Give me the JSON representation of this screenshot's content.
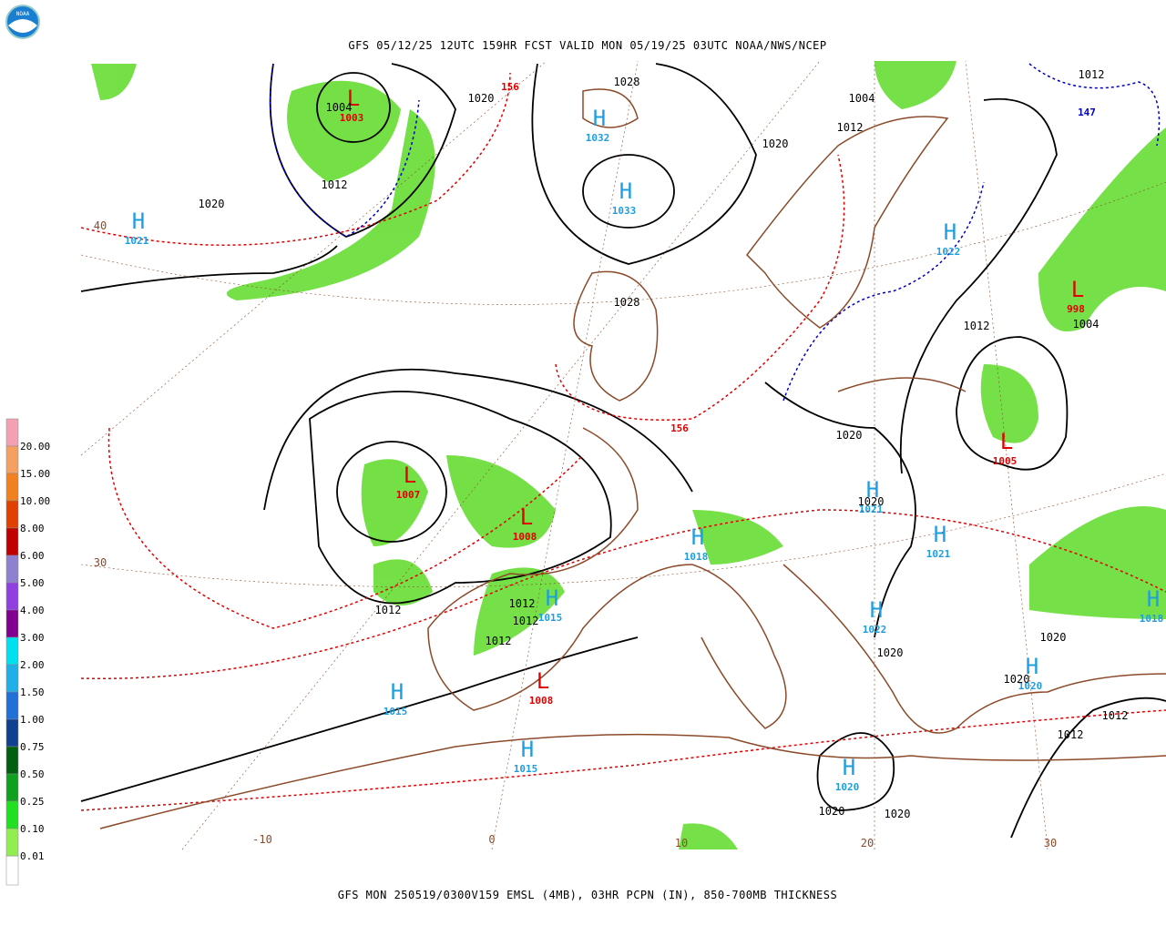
{
  "logo": {
    "text": "NOAA"
  },
  "header": {
    "title": "GFS 05/12/25 12UTC 159HR FCST VALID MON 05/19/25 03UTC NOAA/NWS/NCEP"
  },
  "footer": {
    "caption": "GFS MON 250519/0300V159 EMSL (4MB), 03HR PCPN (IN), 850-700MB THICKNESS"
  },
  "legend": {
    "items": [
      {
        "label": "20.00",
        "color": "#f4a0b4"
      },
      {
        "label": "15.00",
        "color": "#f4a060"
      },
      {
        "label": "10.00",
        "color": "#f08020"
      },
      {
        "label": "8.00",
        "color": "#e04000"
      },
      {
        "label": "6.00",
        "color": "#c00000"
      },
      {
        "label": "5.00",
        "color": "#9080d0"
      },
      {
        "label": "4.00",
        "color": "#9040e0"
      },
      {
        "label": "3.00",
        "color": "#800090"
      },
      {
        "label": "2.00",
        "color": "#00e0f0"
      },
      {
        "label": "1.50",
        "color": "#20b0e8"
      },
      {
        "label": "1.00",
        "color": "#2070d8"
      },
      {
        "label": "0.75",
        "color": "#104090"
      },
      {
        "label": "0.50",
        "color": "#006010"
      },
      {
        "label": "0.25",
        "color": "#10a020"
      },
      {
        "label": "0.10",
        "color": "#20e020"
      },
      {
        "label": "0.01",
        "color": "#90ee50"
      }
    ]
  },
  "map": {
    "centers": [
      {
        "symbol": "H",
        "value": "1021"
      },
      {
        "symbol": "L",
        "value": "1003"
      },
      {
        "symbol": "H",
        "value": "1032"
      },
      {
        "symbol": "H",
        "value": "1033"
      },
      {
        "symbol": "H",
        "value": "1022"
      },
      {
        "symbol": "L",
        "value": "998"
      },
      {
        "symbol": "L",
        "value": "1005"
      },
      {
        "symbol": "L",
        "value": "1007"
      },
      {
        "symbol": "L",
        "value": "1008"
      },
      {
        "symbol": "H",
        "value": "1021"
      },
      {
        "symbol": "H",
        "value": "1021"
      },
      {
        "symbol": "H",
        "value": "1018"
      },
      {
        "symbol": "H",
        "value": "1015"
      },
      {
        "symbol": "H",
        "value": "1022"
      },
      {
        "symbol": "H",
        "value": "1018"
      },
      {
        "symbol": "H",
        "value": "1015"
      },
      {
        "symbol": "L",
        "value": "1008"
      },
      {
        "symbol": "H",
        "value": "1020"
      },
      {
        "symbol": "H",
        "value": "1015"
      },
      {
        "symbol": "H",
        "value": "1020"
      }
    ],
    "isobar_labels": [
      "1004",
      "1012",
      "1020",
      "1020",
      "1028",
      "1004",
      "1012",
      "1020",
      "1012",
      "1028",
      "1012",
      "1004",
      "1020",
      "1020",
      "1012",
      "1012",
      "1012",
      "1012",
      "1020",
      "1020",
      "1020",
      "1012",
      "1012",
      "1020",
      "1020"
    ],
    "thickness_labels": [
      {
        "text": "156",
        "color": "#e00000"
      },
      {
        "text": "156",
        "color": "#e00000"
      },
      {
        "text": "147",
        "color": "#0000c0"
      }
    ],
    "grid_labels": [
      "40",
      "30",
      "-10",
      "0",
      "10",
      "20",
      "30"
    ]
  }
}
